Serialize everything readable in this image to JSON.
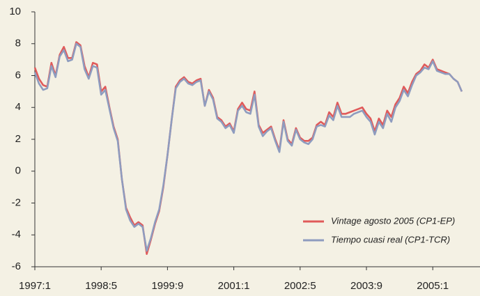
{
  "chart_data": {
    "type": "line",
    "categories": [
      "1997:1",
      null,
      null,
      null,
      null,
      null,
      null,
      null,
      null,
      null,
      null,
      null,
      null,
      null,
      null,
      null,
      "1998:5",
      null,
      null,
      null,
      null,
      null,
      null,
      null,
      null,
      null,
      null,
      null,
      null,
      null,
      null,
      null,
      "1999:9",
      null,
      null,
      null,
      null,
      null,
      null,
      null,
      null,
      null,
      null,
      null,
      null,
      null,
      null,
      null,
      "2001:1",
      null,
      null,
      null,
      null,
      null,
      null,
      null,
      null,
      null,
      null,
      null,
      null,
      null,
      null,
      null,
      "2002:5",
      null,
      null,
      null,
      null,
      null,
      null,
      null,
      null,
      null,
      null,
      null,
      null,
      null,
      null,
      null,
      "2003:9",
      null,
      null,
      null,
      null,
      null,
      null,
      null,
      null,
      null,
      null,
      null,
      null,
      null,
      null,
      null,
      "2005:1",
      null,
      null,
      null,
      null,
      null,
      null,
      null
    ],
    "series": [
      {
        "name": "Vintage agosto 2005 (CP1-EP)",
        "color": "#e05a5a",
        "values": [
          6.5,
          5.8,
          5.4,
          5.3,
          6.8,
          6.0,
          7.3,
          7.8,
          7.1,
          7.1,
          8.1,
          7.9,
          6.6,
          5.9,
          6.8,
          6.7,
          5.0,
          5.3,
          4.0,
          2.8,
          2.0,
          -0.5,
          -2.3,
          -2.9,
          -3.4,
          -3.2,
          -3.4,
          -5.2,
          -4.3,
          -3.3,
          -2.5,
          -1.0,
          1.0,
          3.2,
          5.3,
          5.7,
          5.9,
          5.6,
          5.5,
          5.7,
          5.8,
          4.1,
          5.1,
          4.6,
          3.4,
          3.2,
          2.8,
          3.0,
          2.5,
          3.9,
          4.3,
          3.9,
          3.8,
          5.0,
          2.9,
          2.4,
          2.6,
          2.8,
          2.0,
          1.3,
          3.2,
          2.0,
          1.7,
          2.7,
          2.1,
          1.9,
          1.9,
          2.1,
          2.9,
          3.1,
          2.9,
          3.7,
          3.4,
          4.3,
          3.6,
          3.6,
          3.7,
          3.8,
          3.9,
          4.0,
          3.6,
          3.3,
          2.5,
          3.3,
          2.9,
          3.8,
          3.4,
          4.2,
          4.6,
          5.3,
          4.9,
          5.6,
          6.1,
          6.3,
          6.7,
          6.5,
          7.0,
          6.4,
          6.3,
          6.2,
          6.1,
          5.8,
          5.6,
          5.0
        ]
      },
      {
        "name": "Tiempo cuasi real (CP1-TCR)",
        "color": "#8e9cbf",
        "values": [
          6.2,
          5.5,
          5.1,
          5.2,
          6.6,
          5.9,
          7.2,
          7.6,
          6.9,
          7.0,
          8.0,
          7.8,
          6.4,
          5.8,
          6.6,
          6.5,
          4.8,
          5.1,
          3.9,
          2.7,
          1.9,
          -0.5,
          -2.4,
          -3.1,
          -3.5,
          -3.3,
          -3.5,
          -5.0,
          -4.2,
          -3.2,
          -2.4,
          -0.9,
          1.0,
          3.2,
          5.2,
          5.6,
          5.8,
          5.5,
          5.4,
          5.6,
          5.7,
          4.1,
          5.0,
          4.5,
          3.3,
          3.1,
          2.7,
          2.9,
          2.4,
          3.8,
          4.1,
          3.7,
          3.6,
          4.8,
          2.8,
          2.2,
          2.5,
          2.7,
          1.9,
          1.2,
          3.1,
          1.9,
          1.6,
          2.6,
          2.0,
          1.8,
          1.7,
          2.0,
          2.8,
          2.9,
          2.8,
          3.5,
          3.2,
          4.1,
          3.4,
          3.4,
          3.4,
          3.6,
          3.7,
          3.8,
          3.4,
          3.1,
          2.3,
          3.1,
          2.7,
          3.6,
          3.1,
          4.0,
          4.4,
          5.1,
          4.7,
          5.4,
          6.0,
          6.2,
          6.5,
          6.4,
          6.9,
          6.3,
          6.2,
          6.1,
          6.1,
          5.8,
          5.6,
          5.0
        ]
      }
    ],
    "ylim": [
      -6,
      10
    ],
    "yticks": [
      -6,
      -4,
      -2,
      0,
      2,
      4,
      6,
      8,
      10
    ],
    "legend": "lower right"
  }
}
